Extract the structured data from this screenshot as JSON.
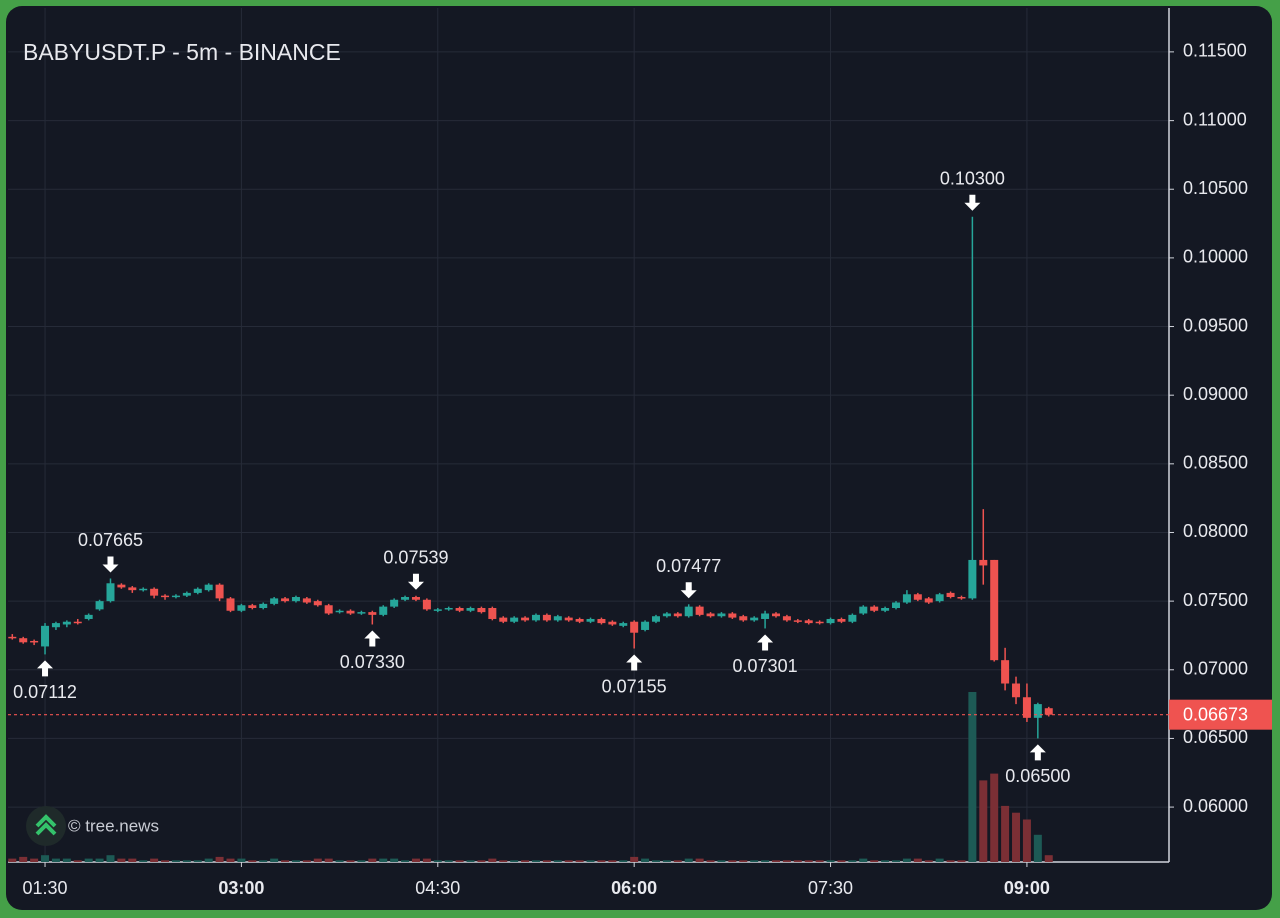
{
  "chart_data": {
    "type": "candlestick",
    "title": "BABYUSDT.P - 5m - BINANCE",
    "watermark": "© tree.news",
    "up_color": "#26a69a",
    "down_color": "#ef5350",
    "volume_up_color": "#1d5a55",
    "volume_down_color": "#7b2f35",
    "grid": true,
    "x": [
      "01:15",
      "01:20",
      "01:25",
      "01:30",
      "01:35",
      "01:40",
      "01:45",
      "01:50",
      "01:55",
      "02:00",
      "02:05",
      "02:10",
      "02:15",
      "02:20",
      "02:25",
      "02:30",
      "02:35",
      "02:40",
      "02:45",
      "02:50",
      "02:55",
      "03:00",
      "03:05",
      "03:10",
      "03:15",
      "03:20",
      "03:25",
      "03:30",
      "03:35",
      "03:40",
      "03:45",
      "03:50",
      "03:55",
      "04:00",
      "04:05",
      "04:10",
      "04:15",
      "04:20",
      "04:25",
      "04:30",
      "04:35",
      "04:40",
      "04:45",
      "04:50",
      "04:55",
      "05:00",
      "05:05",
      "05:10",
      "05:15",
      "05:20",
      "05:25",
      "05:30",
      "05:35",
      "05:40",
      "05:45",
      "05:50",
      "05:55",
      "06:00",
      "06:05",
      "06:10",
      "06:15",
      "06:20",
      "06:25",
      "06:30",
      "06:35",
      "06:40",
      "06:45",
      "06:50",
      "06:55",
      "07:00",
      "07:05",
      "07:10",
      "07:15",
      "07:20",
      "07:25",
      "07:30",
      "07:35",
      "07:40",
      "07:45",
      "07:50",
      "07:55",
      "08:00",
      "08:05",
      "08:10",
      "08:15",
      "08:20",
      "08:25",
      "08:30",
      "08:35",
      "08:40",
      "08:45",
      "08:50",
      "08:55",
      "09:00",
      "09:05",
      "09:10"
    ],
    "open": [
      0.0724,
      0.0723,
      0.0721,
      0.0717,
      0.0731,
      0.0733,
      0.0735,
      0.0737,
      0.0744,
      0.075,
      0.0762,
      0.076,
      0.0758,
      0.0759,
      0.0754,
      0.0753,
      0.0754,
      0.0756,
      0.0758,
      0.0762,
      0.0752,
      0.0743,
      0.0747,
      0.0745,
      0.0748,
      0.0752,
      0.075,
      0.0752,
      0.075,
      0.0747,
      0.0742,
      0.0743,
      0.0741,
      0.0742,
      0.074,
      0.0746,
      0.0751,
      0.0753,
      0.0751,
      0.0743,
      0.0744,
      0.0745,
      0.0743,
      0.0745,
      0.0745,
      0.0738,
      0.0735,
      0.0738,
      0.0736,
      0.074,
      0.0736,
      0.0738,
      0.0737,
      0.0735,
      0.0737,
      0.0735,
      0.0732,
      0.0735,
      0.0729,
      0.0735,
      0.0739,
      0.0741,
      0.0739,
      0.0746,
      0.0741,
      0.0739,
      0.0741,
      0.0739,
      0.0736,
      0.0737,
      0.0741,
      0.0739,
      0.0736,
      0.0736,
      0.0735,
      0.0734,
      0.0737,
      0.0735,
      0.0741,
      0.0746,
      0.0743,
      0.0745,
      0.0749,
      0.0755,
      0.0752,
      0.075,
      0.0756,
      0.0753,
      0.0752,
      0.078,
      0.078,
      0.0707,
      0.069,
      0.068,
      0.0665,
      0.0672
    ],
    "high": [
      0.0726,
      0.0724,
      0.0722,
      0.0734,
      0.0735,
      0.0736,
      0.0737,
      0.0741,
      0.0751,
      0.07665,
      0.0763,
      0.0761,
      0.076,
      0.076,
      0.0755,
      0.0755,
      0.0757,
      0.076,
      0.0763,
      0.0763,
      0.0753,
      0.0748,
      0.0748,
      0.0749,
      0.0753,
      0.0753,
      0.0754,
      0.0753,
      0.0751,
      0.0748,
      0.0744,
      0.0744,
      0.0743,
      0.0743,
      0.0747,
      0.0752,
      0.0754,
      0.07539,
      0.0752,
      0.0745,
      0.0746,
      0.0746,
      0.0746,
      0.0746,
      0.0746,
      0.0739,
      0.0739,
      0.0739,
      0.0741,
      0.0741,
      0.074,
      0.0739,
      0.0738,
      0.0738,
      0.0738,
      0.0736,
      0.0735,
      0.0736,
      0.0736,
      0.074,
      0.0742,
      0.0742,
      0.07477,
      0.0747,
      0.0742,
      0.0742,
      0.0742,
      0.074,
      0.0739,
      0.0743,
      0.0742,
      0.074,
      0.0737,
      0.0737,
      0.0736,
      0.0738,
      0.0738,
      0.0741,
      0.0747,
      0.0747,
      0.0746,
      0.075,
      0.0758,
      0.0756,
      0.0753,
      0.0756,
      0.0757,
      0.0754,
      0.103,
      0.0817,
      0.078,
      0.0716,
      0.0695,
      0.069,
      0.0676,
      0.0673
    ],
    "low": [
      0.0722,
      0.0719,
      0.0718,
      0.07112,
      0.0729,
      0.0731,
      0.0733,
      0.0736,
      0.0743,
      0.0749,
      0.0759,
      0.0756,
      0.0757,
      0.0752,
      0.0751,
      0.0752,
      0.0753,
      0.0755,
      0.0757,
      0.075,
      0.0742,
      0.0742,
      0.0744,
      0.0744,
      0.0747,
      0.0749,
      0.0749,
      0.0748,
      0.0746,
      0.074,
      0.0741,
      0.074,
      0.074,
      0.0733,
      0.0739,
      0.0745,
      0.075,
      0.075,
      0.0743,
      0.0742,
      0.0743,
      0.0742,
      0.0742,
      0.0741,
      0.0736,
      0.0734,
      0.0734,
      0.0735,
      0.0735,
      0.0735,
      0.0735,
      0.0735,
      0.0734,
      0.0734,
      0.0733,
      0.0732,
      0.0731,
      0.07155,
      0.0728,
      0.0734,
      0.0738,
      0.0738,
      0.0738,
      0.0739,
      0.0738,
      0.0738,
      0.0737,
      0.0735,
      0.0735,
      0.07301,
      0.0738,
      0.0735,
      0.0734,
      0.0733,
      0.0733,
      0.0733,
      0.0734,
      0.0734,
      0.074,
      0.0742,
      0.0742,
      0.0744,
      0.0748,
      0.075,
      0.0748,
      0.0749,
      0.0752,
      0.0751,
      0.0751,
      0.0762,
      0.0706,
      0.0685,
      0.0675,
      0.0662,
      0.065,
      0.0666
    ],
    "close": [
      0.0723,
      0.072,
      0.072,
      0.0732,
      0.0734,
      0.0735,
      0.0734,
      0.074,
      0.075,
      0.0763,
      0.076,
      0.0758,
      0.0759,
      0.0754,
      0.0753,
      0.0754,
      0.0756,
      0.0759,
      0.0762,
      0.0752,
      0.0743,
      0.0747,
      0.0745,
      0.0748,
      0.0752,
      0.075,
      0.0753,
      0.0749,
      0.0747,
      0.0741,
      0.0743,
      0.0741,
      0.0742,
      0.074,
      0.0746,
      0.0751,
      0.0753,
      0.0751,
      0.0744,
      0.0744,
      0.0745,
      0.0743,
      0.0745,
      0.0742,
      0.0737,
      0.0735,
      0.0738,
      0.0736,
      0.074,
      0.0736,
      0.0739,
      0.0736,
      0.0735,
      0.0737,
      0.0734,
      0.0733,
      0.0734,
      0.0727,
      0.0735,
      0.0739,
      0.0741,
      0.0739,
      0.0746,
      0.074,
      0.0739,
      0.0741,
      0.0738,
      0.0736,
      0.0738,
      0.0741,
      0.0739,
      0.0736,
      0.0735,
      0.0734,
      0.0734,
      0.0737,
      0.0735,
      0.074,
      0.0746,
      0.0743,
      0.0745,
      0.0749,
      0.0755,
      0.0751,
      0.0749,
      0.0755,
      0.0753,
      0.0752,
      0.078,
      0.0776,
      0.0707,
      0.069,
      0.068,
      0.0665,
      0.0675,
      0.06673
    ],
    "volume": [
      2,
      3,
      2,
      4,
      2,
      2,
      1,
      2,
      2,
      4,
      2,
      2,
      1,
      2,
      1,
      1,
      1,
      1,
      2,
      3,
      2,
      2,
      1,
      1,
      2,
      1,
      1,
      1,
      2,
      2,
      1,
      1,
      1,
      2,
      2,
      2,
      1,
      2,
      2,
      1,
      1,
      1,
      1,
      1,
      2,
      1,
      1,
      1,
      1,
      1,
      1,
      1,
      1,
      1,
      1,
      1,
      1,
      3,
      2,
      1,
      1,
      1,
      2,
      2,
      1,
      1,
      1,
      1,
      1,
      1,
      1,
      1,
      1,
      1,
      1,
      1,
      1,
      1,
      2,
      1,
      1,
      1,
      2,
      2,
      1,
      2,
      1,
      1,
      100,
      48,
      52,
      33,
      29,
      25,
      16,
      4
    ],
    "ylim": [
      0.056,
      0.1182
    ],
    "yticks": [
      {
        "value": 0.06,
        "label": "0.06000"
      },
      {
        "value": 0.065,
        "label": "0.06500"
      },
      {
        "value": 0.07,
        "label": "0.07000"
      },
      {
        "value": 0.075,
        "label": "0.07500"
      },
      {
        "value": 0.08,
        "label": "0.08000"
      },
      {
        "value": 0.085,
        "label": "0.08500"
      },
      {
        "value": 0.09,
        "label": "0.09000"
      },
      {
        "value": 0.095,
        "label": "0.09500"
      },
      {
        "value": 0.1,
        "label": "0.10000"
      },
      {
        "value": 0.105,
        "label": "0.10500"
      },
      {
        "value": 0.11,
        "label": "0.11000"
      },
      {
        "value": 0.115,
        "label": "0.11500"
      }
    ],
    "xticks": [
      "01:30",
      "03:00",
      "04:30",
      "06:00",
      "07:30",
      "09:00"
    ],
    "xtick_bold": [
      false,
      true,
      false,
      true,
      false,
      true
    ],
    "last_price": {
      "value": 0.06673,
      "label": "0.06673"
    },
    "annotations": [
      {
        "x": "01:30",
        "value": 0.07112,
        "label": "0.07112",
        "arrow": "up"
      },
      {
        "x": "02:00",
        "value": 0.07665,
        "label": "0.07665",
        "arrow": "down"
      },
      {
        "x": "04:00",
        "value": 0.0733,
        "label": "0.07330",
        "arrow": "up"
      },
      {
        "x": "04:20",
        "value": 0.07539,
        "label": "0.07539",
        "arrow": "down"
      },
      {
        "x": "06:00",
        "value": 0.07155,
        "label": "0.07155",
        "arrow": "up"
      },
      {
        "x": "06:25",
        "value": 0.07477,
        "label": "0.07477",
        "arrow": "down"
      },
      {
        "x": "07:00",
        "value": 0.07301,
        "label": "0.07301",
        "arrow": "up"
      },
      {
        "x": "08:35",
        "value": 0.103,
        "label": "0.10300",
        "arrow": "down"
      },
      {
        "x": "09:05",
        "value": 0.065,
        "label": "0.06500",
        "arrow": "up"
      }
    ]
  }
}
